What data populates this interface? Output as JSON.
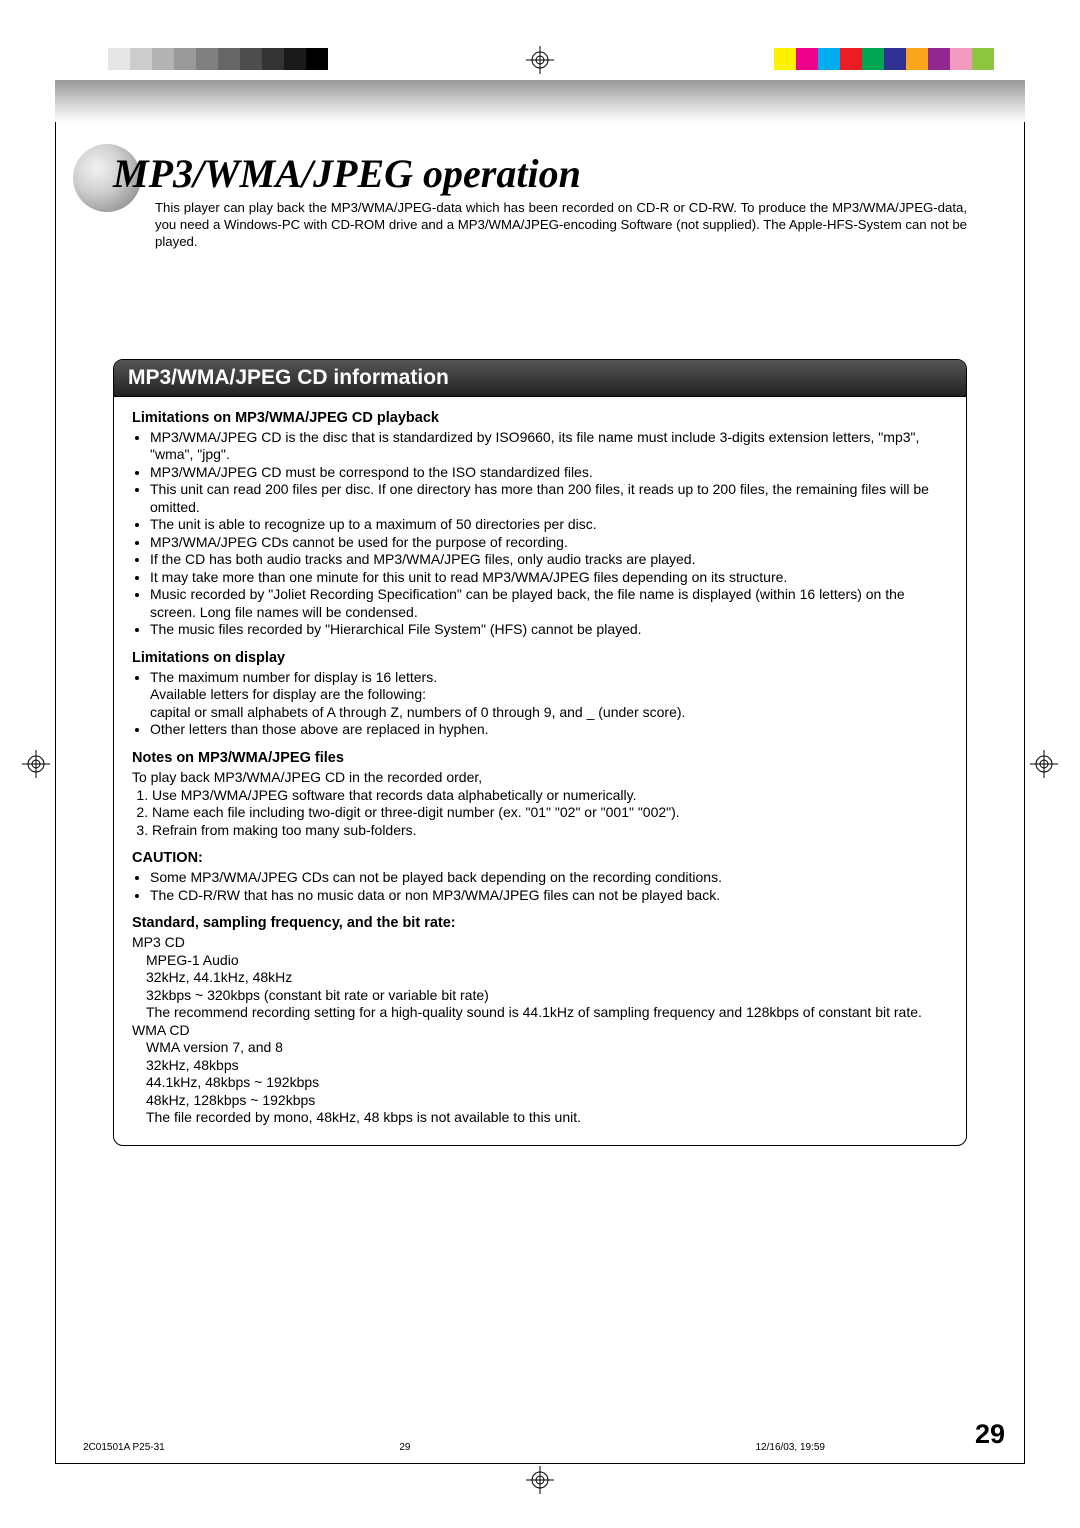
{
  "colorbars": {
    "left_swatches": [
      "#ffffff",
      "#e6e6e6",
      "#cccccc",
      "#b3b3b3",
      "#999999",
      "#808080",
      "#666666",
      "#4d4d4d",
      "#333333",
      "#1a1a1a",
      "#000000"
    ],
    "right_swatches": [
      "#fff200",
      "#ec008c",
      "#00aeef",
      "#ed1c24",
      "#00a651",
      "#2e3192",
      "#faa61a",
      "#92278f",
      "#f49ac1",
      "#8dc63f"
    ]
  },
  "title": "MP3/WMA/JPEG operation",
  "intro": "This player can play back the MP3/WMA/JPEG-data which has been recorded on CD-R or CD-RW. To produce the MP3/WMA/JPEG-data, you need a Windows-PC with CD-ROM drive and a MP3/WMA/JPEG-encoding Software (not supplied). The Apple-HFS-System can not be played.",
  "panel_heading": "MP3/WMA/JPEG CD information",
  "sections": {
    "s1_head": "Limitations on MP3/WMA/JPEG CD playback",
    "s1_b1": "MP3/WMA/JPEG CD is the disc that is standardized by ISO9660, its file name must include 3-digits extension letters, \"mp3\", \"wma\", \"jpg\".",
    "s1_b2": "MP3/WMA/JPEG CD must be correspond to the ISO standardized files.",
    "s1_b3": "This unit can read 200 files per disc. If one directory has more than 200 files, it reads up to 200 files, the remaining files will be omitted.",
    "s1_b4": "The unit is able to recognize up to a maximum of 50 directories per disc.",
    "s1_b5": "MP3/WMA/JPEG CDs cannot be used for the purpose of recording.",
    "s1_b6": "If the CD has both audio tracks and MP3/WMA/JPEG files, only audio tracks are played.",
    "s1_b7": "It may take more than one minute for this unit to read MP3/WMA/JPEG files depending on its structure.",
    "s1_b8": "Music recorded by \"Joliet Recording Specification\" can be played back, the file name is displayed (within 16 letters) on the screen. Long file names will be condensed.",
    "s1_b9": "The music files recorded by \"Hierarchical File System\" (HFS) cannot be played.",
    "s2_head": "Limitations on display",
    "s2_b1a": "The maximum number for display is 16 letters.",
    "s2_b1b": "Available letters for display are the following:",
    "s2_b1c": "capital or small alphabets of A through Z, numbers of 0 through 9, and _ (under score).",
    "s2_b2": "Other letters than those above are replaced in hyphen.",
    "s3_head": "Notes on MP3/WMA/JPEG files",
    "s3_p1": "To play back MP3/WMA/JPEG CD in the recorded order,",
    "s3_n1": "Use MP3/WMA/JPEG software that records data alphabetically or numerically.",
    "s3_n2": "Name each file including two-digit or three-digit number (ex. \"01\" \"02\" or \"001\" \"002\").",
    "s3_n3": "Refrain from making too many sub-folders.",
    "s4_head": "CAUTION:",
    "s4_b1": "Some MP3/WMA/JPEG CDs can not be played back depending on the recording conditions.",
    "s4_b2": "The CD-R/RW that has no music data or non MP3/WMA/JPEG files can not be played back.",
    "s5_head": "Standard, sampling frequency, and the bit rate:",
    "s5_l1": "MP3 CD",
    "s5_l2": "MPEG-1 Audio",
    "s5_l3": "32kHz, 44.1kHz, 48kHz",
    "s5_l4": "32kbps ~ 320kbps (constant bit rate or variable bit rate)",
    "s5_l5": "The recommend recording setting for a high-quality sound is 44.1kHz of sampling frequency and 128kbps of constant bit rate.",
    "s5_l6": "WMA CD",
    "s5_l7": "WMA version 7, and 8",
    "s5_l8": "32kHz, 48kbps",
    "s5_l9": "44.1kHz, 48kbps ~ 192kbps",
    "s5_l10": "48kHz, 128kbps ~ 192kbps",
    "s5_l11": "The file recorded by mono, 48kHz, 48 kbps is not available to this unit."
  },
  "page_number": "29",
  "footer": {
    "id": "2C01501A P25-31",
    "page": "29",
    "date": "12/16/03, 19:59"
  }
}
